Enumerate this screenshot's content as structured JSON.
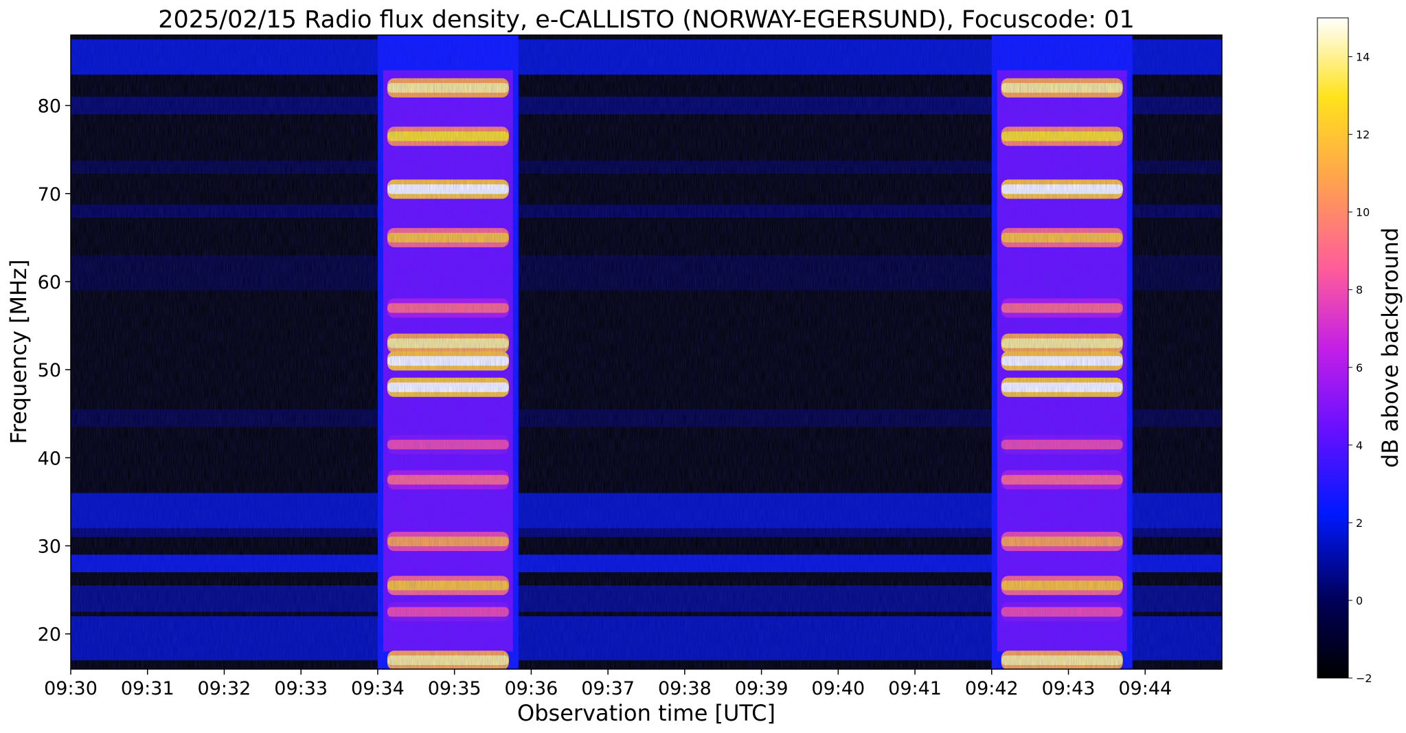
{
  "chart_data": {
    "type": "heatmap",
    "title": "2025/02/15  Radio flux density, e-CALLISTO (NORWAY-EGERSUND), Focuscode: 01",
    "xlabel": "Observation time [UTC]",
    "ylabel": "Frequency [MHz]",
    "x_ticks": [
      "09:30",
      "09:31",
      "09:32",
      "09:33",
      "09:34",
      "09:35",
      "09:36",
      "09:37",
      "09:38",
      "09:39",
      "09:40",
      "09:41",
      "09:42",
      "09:43",
      "09:44"
    ],
    "xlim": [
      "09:30",
      "09:45"
    ],
    "y_ticks": [
      20,
      30,
      40,
      50,
      60,
      70,
      80
    ],
    "ylim": [
      16,
      88
    ],
    "colormap": "gnuplot2",
    "colorbar": {
      "label": "dB above background",
      "ticks": [
        -2,
        0,
        2,
        4,
        6,
        8,
        10,
        12,
        14
      ],
      "range": [
        -2,
        15
      ]
    },
    "bursts": [
      {
        "start": "09:34",
        "end": "09:35:50",
        "level_db": 15
      },
      {
        "start": "09:42",
        "end": "09:43:50",
        "level_db": 15
      }
    ],
    "emission_bands_mhz": [
      {
        "freq": 82,
        "level_db": 14
      },
      {
        "freq": 76.5,
        "level_db": 13
      },
      {
        "freq": 70.5,
        "level_db": 15
      },
      {
        "freq": 65,
        "level_db": 12
      },
      {
        "freq": 57,
        "level_db": 9
      },
      {
        "freq": 53,
        "level_db": 14
      },
      {
        "freq": 51,
        "level_db": 15
      },
      {
        "freq": 48,
        "level_db": 15
      },
      {
        "freq": 41.5,
        "level_db": 8
      },
      {
        "freq": 37.5,
        "level_db": 9
      },
      {
        "freq": 30.5,
        "level_db": 11
      },
      {
        "freq": 25.5,
        "level_db": 12
      },
      {
        "freq": 22.5,
        "level_db": 8
      },
      {
        "freq": 17,
        "level_db": 14
      }
    ]
  }
}
